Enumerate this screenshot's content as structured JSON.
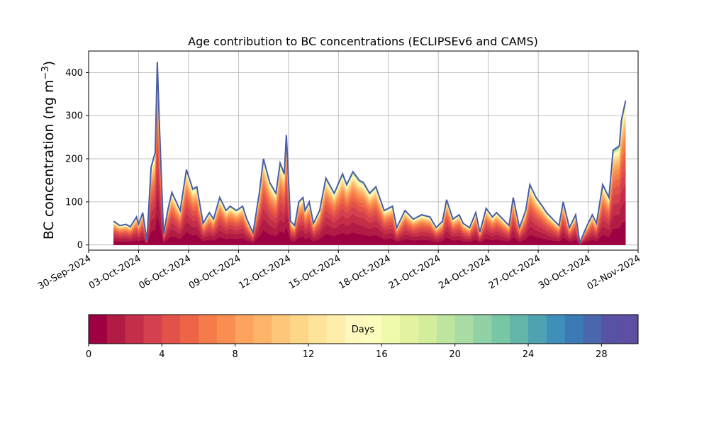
{
  "chart_data": [
    {
      "type": "area",
      "subtype": "stacked-area",
      "title": "Age contribution to BC concentrations (ECLIPSEv6 and CAMS)",
      "xlabel": "",
      "ylabel": "BC concentration (ng m",
      "ylabel_sup": "−3",
      "ylabel_close": ")",
      "xlim": [
        "2024-09-30T00:00",
        "2024-11-02T00:00"
      ],
      "ylim": [
        -12,
        450
      ],
      "x_axis": "date",
      "x_tick_labels": [
        "30-Sep-2024",
        "03-Oct-2024",
        "06-Oct-2024",
        "09-Oct-2024",
        "12-Oct-2024",
        "15-Oct-2024",
        "18-Oct-2024",
        "21-Oct-2024",
        "24-Oct-2024",
        "27-Oct-2024",
        "30-Oct-2024",
        "02-Nov-2024"
      ],
      "x_tick_dates": [
        "2024-09-30",
        "2024-10-03",
        "2024-10-06",
        "2024-10-09",
        "2024-10-12",
        "2024-10-15",
        "2024-10-18",
        "2024-10-21",
        "2024-10-24",
        "2024-10-27",
        "2024-10-30",
        "2024-11-02"
      ],
      "y_ticks": [
        0,
        100,
        200,
        300,
        400
      ],
      "grid": true,
      "series_count": 30,
      "series_description": "stacked contributions by age bin, 0-1 days at bottom to 29-30 days on top",
      "total_series": {
        "x": [
          "2024-10-01T12:00",
          "2024-10-01T21:00",
          "2024-10-02T06:00",
          "2024-10-02T12:00",
          "2024-10-02T21:00",
          "2024-10-03T00:00",
          "2024-10-03T06:00",
          "2024-10-03T12:00",
          "2024-10-03T18:00",
          "2024-10-04T00:00",
          "2024-10-04T03:00",
          "2024-10-04T06:00",
          "2024-10-04T12:00",
          "2024-10-04T18:00",
          "2024-10-05T00:00",
          "2024-10-05T12:00",
          "2024-10-05T21:00",
          "2024-10-06T06:00",
          "2024-10-06T12:00",
          "2024-10-06T21:00",
          "2024-10-07T06:00",
          "2024-10-07T12:00",
          "2024-10-07T21:00",
          "2024-10-08T06:00",
          "2024-10-08T12:00",
          "2024-10-08T21:00",
          "2024-10-09T06:00",
          "2024-10-09T12:00",
          "2024-10-09T21:00",
          "2024-10-10T06:00",
          "2024-10-10T12:00",
          "2024-10-10T21:00",
          "2024-10-11T06:00",
          "2024-10-11T12:00",
          "2024-10-11T18:00",
          "2024-10-11T21:00",
          "2024-10-12T03:00",
          "2024-10-12T09:00",
          "2024-10-12T15:00",
          "2024-10-12T21:00",
          "2024-10-13T00:00",
          "2024-10-13T06:00",
          "2024-10-13T12:00",
          "2024-10-13T21:00",
          "2024-10-14T06:00",
          "2024-10-14T18:00",
          "2024-10-15T06:00",
          "2024-10-15T12:00",
          "2024-10-15T21:00",
          "2024-10-16T06:00",
          "2024-10-16T12:00",
          "2024-10-16T21:00",
          "2024-10-17T06:00",
          "2024-10-17T18:00",
          "2024-10-18T06:00",
          "2024-10-18T12:00",
          "2024-10-19T00:00",
          "2024-10-19T12:00",
          "2024-10-20T00:00",
          "2024-10-20T12:00",
          "2024-10-20T21:00",
          "2024-10-21T06:00",
          "2024-10-21T12:00",
          "2024-10-21T21:00",
          "2024-10-22T06:00",
          "2024-10-22T12:00",
          "2024-10-22T21:00",
          "2024-10-23T06:00",
          "2024-10-23T12:00",
          "2024-10-23T21:00",
          "2024-10-24T06:00",
          "2024-10-24T12:00",
          "2024-10-24T21:00",
          "2024-10-25T06:00",
          "2024-10-25T12:00",
          "2024-10-25T21:00",
          "2024-10-26T06:00",
          "2024-10-26T12:00",
          "2024-10-26T21:00",
          "2024-10-27T06:00",
          "2024-10-27T12:00",
          "2024-10-27T21:00",
          "2024-10-28T06:00",
          "2024-10-28T12:00",
          "2024-10-28T21:00",
          "2024-10-29T06:00",
          "2024-10-29T12:00",
          "2024-10-29T21:00",
          "2024-10-30T06:00",
          "2024-10-30T12:00",
          "2024-10-30T21:00",
          "2024-10-31T06:00",
          "2024-10-31T12:00",
          "2024-10-31T21:00",
          "2024-11-01T00:00",
          "2024-11-01T06:00"
        ],
        "values": [
          55,
          45,
          48,
          42,
          65,
          48,
          75,
          10,
          180,
          215,
          425,
          280,
          25,
          80,
          122,
          80,
          175,
          130,
          135,
          50,
          75,
          60,
          110,
          80,
          90,
          80,
          90,
          60,
          28,
          120,
          200,
          145,
          120,
          190,
          165,
          255,
          55,
          45,
          100,
          110,
          80,
          100,
          50,
          80,
          155,
          120,
          165,
          140,
          170,
          150,
          145,
          120,
          135,
          80,
          90,
          40,
          80,
          60,
          70,
          65,
          40,
          55,
          105,
          60,
          70,
          50,
          40,
          75,
          30,
          85,
          65,
          75,
          60,
          45,
          110,
          40,
          80,
          140,
          110,
          90,
          75,
          60,
          45,
          100,
          40,
          70,
          5,
          40,
          70,
          50,
          140,
          110,
          220,
          230,
          290,
          335
        ]
      },
      "colorbar": {
        "label": "Days",
        "ticks": [
          0,
          4,
          8,
          12,
          16,
          20,
          24,
          28
        ],
        "range": [
          0,
          30
        ],
        "bins": 30,
        "colormap": "Spectral",
        "colors": [
          "#9e0142",
          "#b11c45",
          "#c42e48",
          "#d5404e",
          "#e25249",
          "#ed6546",
          "#f57b4a",
          "#f98d52",
          "#fda35e",
          "#feb56a",
          "#fdc678",
          "#fed688",
          "#fee39a",
          "#feedab",
          "#fef8be",
          "#fcfdbd",
          "#f1f9ac",
          "#e3f39f",
          "#d3ed9c",
          "#bee5a0",
          "#a9dca4",
          "#90d1a5",
          "#78c6a4",
          "#63b4a9",
          "#4fa3b1",
          "#3f8fbb",
          "#3c7ab5",
          "#4a66ad",
          "#5752a3",
          "#5e4fa2"
        ]
      }
    }
  ]
}
